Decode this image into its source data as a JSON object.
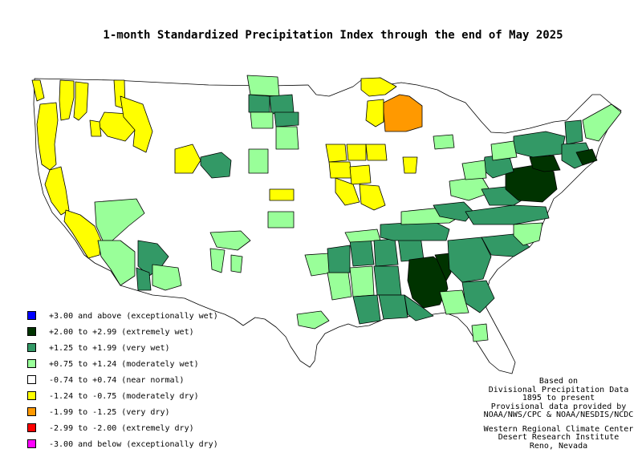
{
  "title": "1-month Standardized Precipitation Index through the end of May 2025",
  "legend": [
    {
      "label": "+3.00 and above (exceptionally wet)",
      "color": "#0000ff"
    },
    {
      "label": "+2.00 to +2.99 (extremely wet)",
      "color": "#003300"
    },
    {
      "label": "+1.25 to +1.99 (very wet)",
      "color": "#339966"
    },
    {
      "label": "+0.75 to +1.24 (moderately wet)",
      "color": "#99ff99"
    },
    {
      "label": "-0.74 to +0.74 (near normal)",
      "color": "#ffffff"
    },
    {
      "label": "-1.24 to -0.75 (moderately dry)",
      "color": "#ffff00"
    },
    {
      "label": "-1.99 to -1.25 (very dry)",
      "color": "#ff9900"
    },
    {
      "label": "-2.99 to -2.00 (extremely dry)",
      "color": "#ff0000"
    },
    {
      "label": "-3.00 and below (exceptionally dry)",
      "color": "#ff00ff"
    }
  ],
  "credits": {
    "line1": "Based on",
    "line2": "Divisional Precipitation Data",
    "line3": "1895 to present",
    "line4": "Provisional data provided by",
    "line5": "NOAA/NWS/CPC & NOAA/NESDIS/NCDC",
    "line6": "Western Regional Climate Center",
    "line7": "Desert Research Institute",
    "line8": "Reno, Nevada"
  }
}
